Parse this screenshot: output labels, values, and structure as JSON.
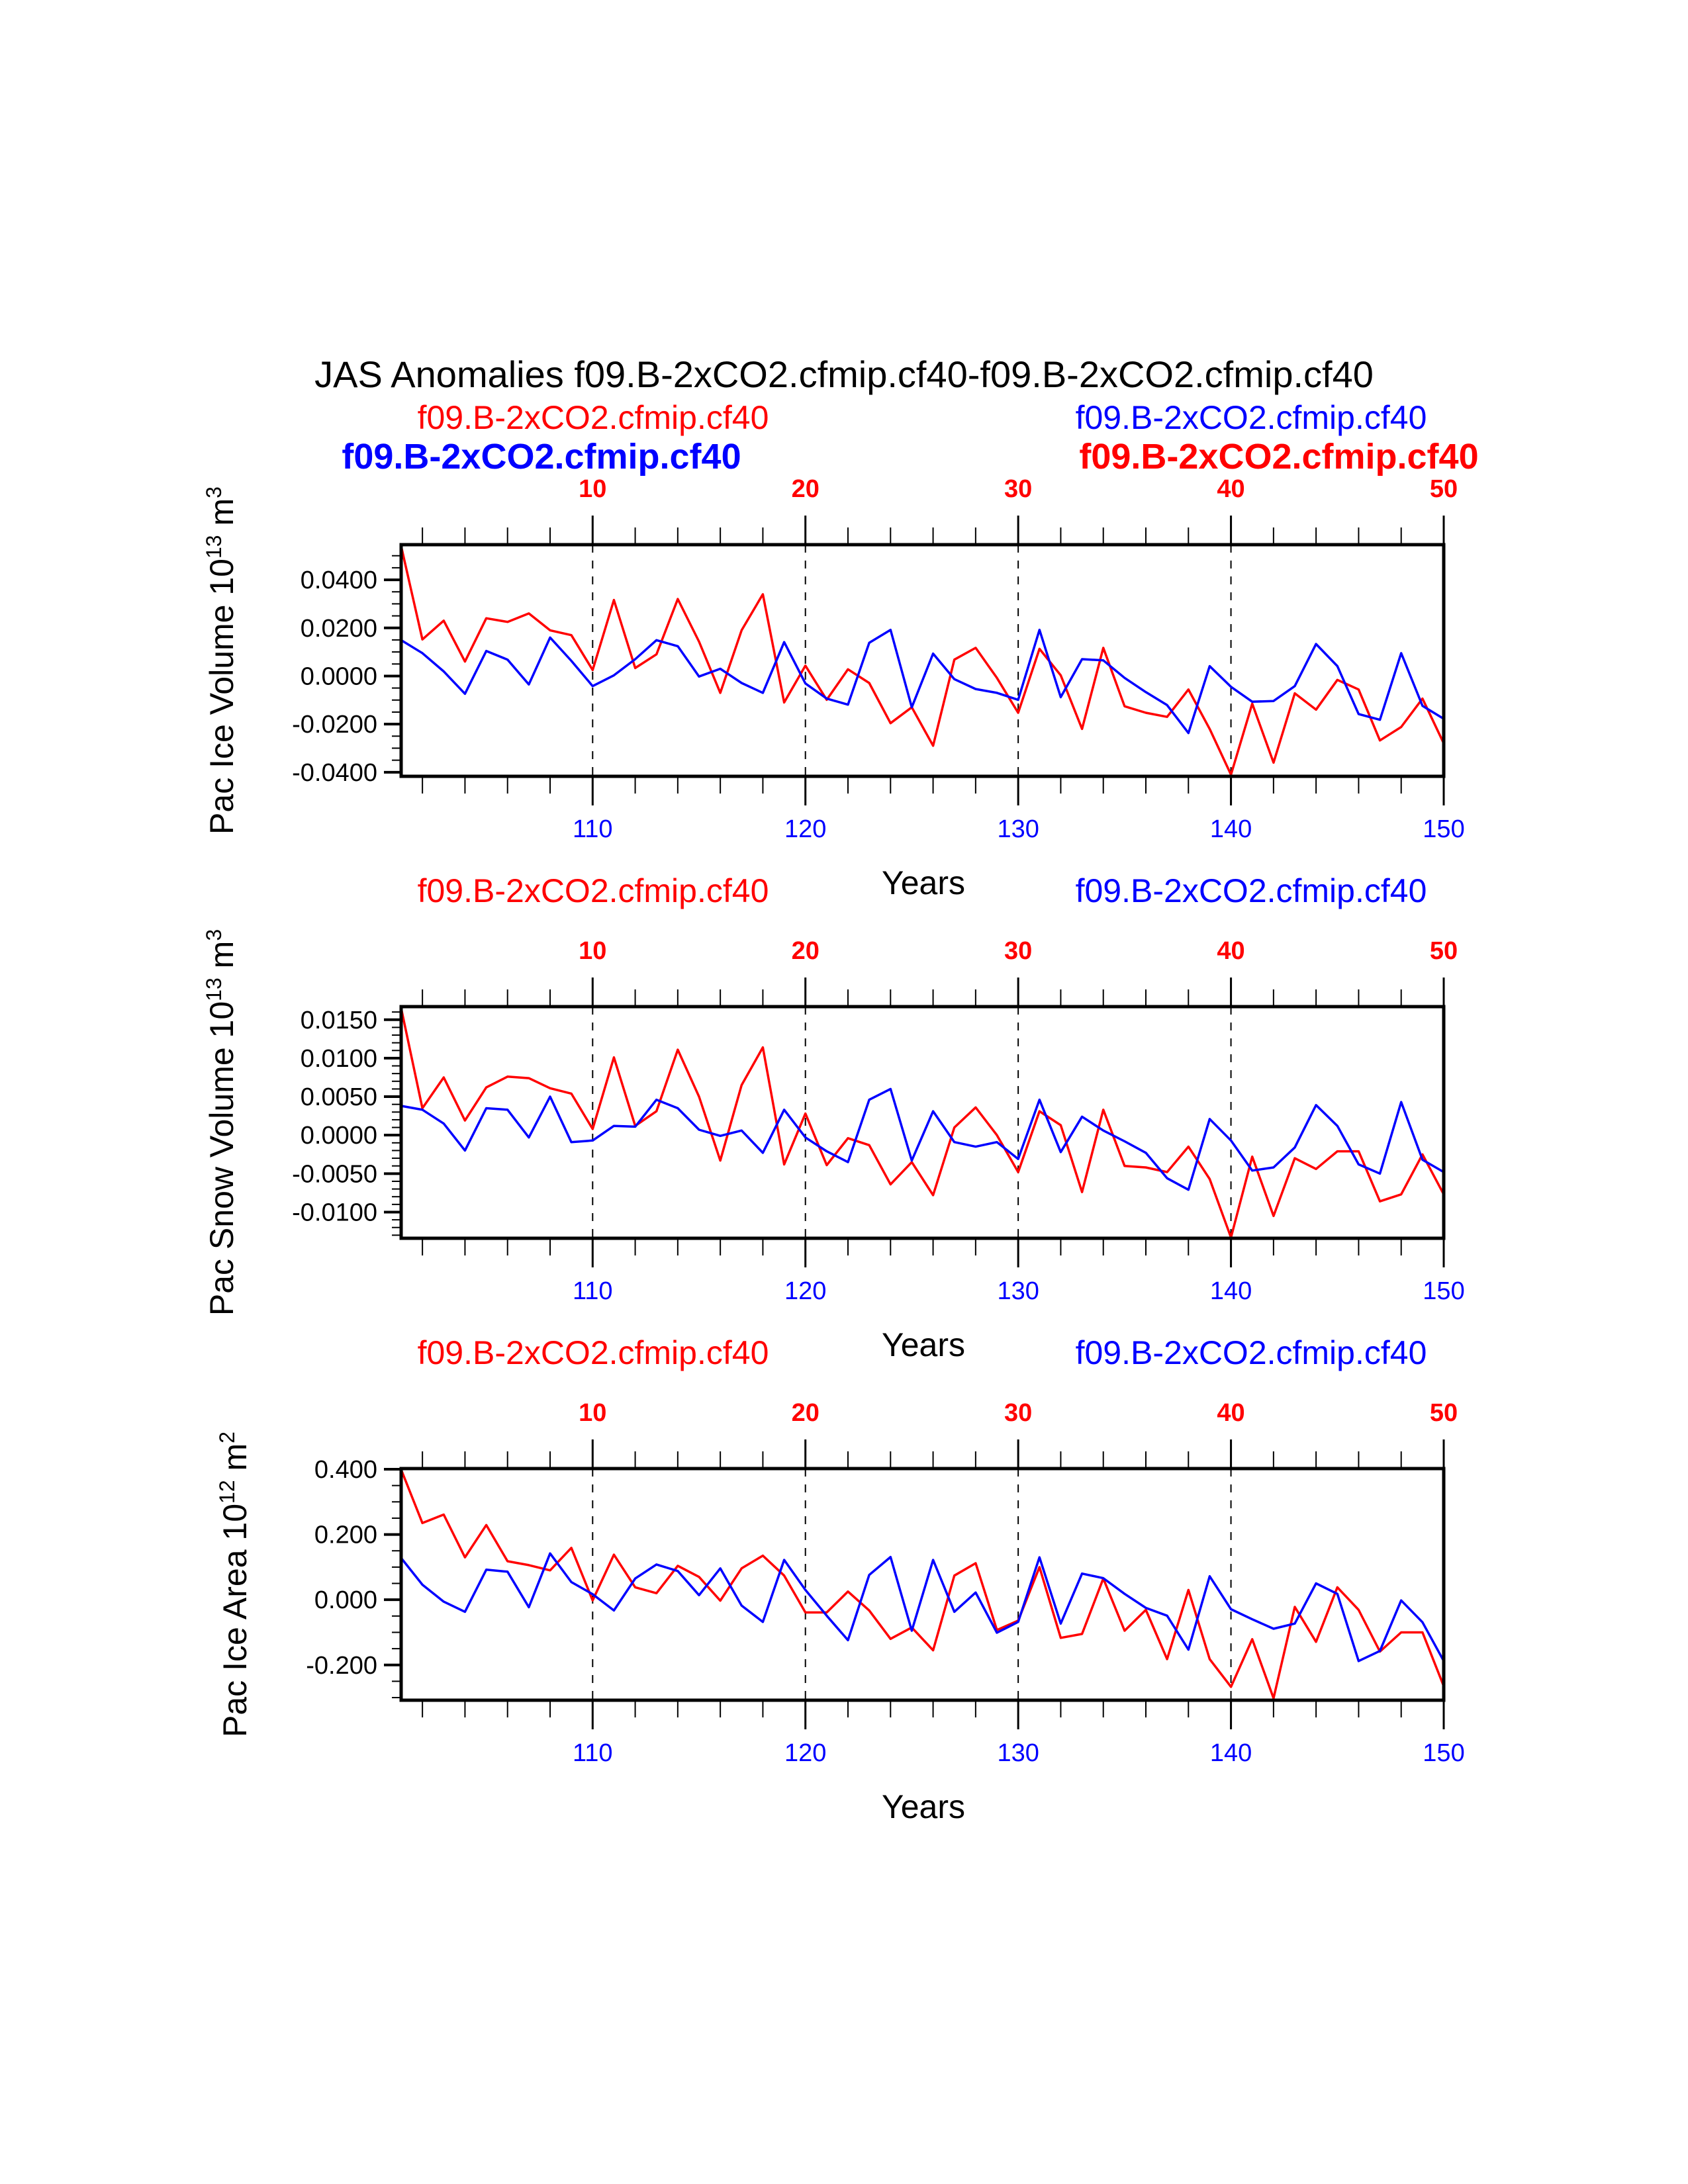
{
  "title": "JAS Anomalies f09.B-2xCO2.cfmip.cf40-f09.B-2xCO2.cfmip.cf40",
  "colors": {
    "case1": "#ff0000",
    "case2": "#0000ff",
    "axis": "#000000"
  },
  "chart_data": [
    {
      "type": "line",
      "ylabel": "Pac Ice Volume 10",
      "ylabel_exp": "13",
      "ylabel_unit": "m",
      "ylabel_unit_exp": "3",
      "xlabel": "Years",
      "legend_left": "f09.B-2xCO2.cfmip.cf40",
      "legend_right": "f09.B-2xCO2.cfmip.cf40",
      "legend_left_bold": "f09.B-2xCO2.cfmip.cf40",
      "legend_right_bold": "f09.B-2xCO2.cfmip.cf40",
      "xlim": [
        101,
        150
      ],
      "ylim": [
        -0.0417,
        0.0546
      ],
      "yticks": [
        "0.0400",
        "0.0200",
        "0.0000",
        "-0.0200",
        "-0.0400"
      ],
      "ytick_values": [
        0.04,
        0.02,
        0,
        -0.02,
        -0.04
      ],
      "yminor_step": 0.005,
      "xticks_bottom": [
        "110",
        "120",
        "130",
        "140",
        "150"
      ],
      "xticks_top": [
        "10",
        "20",
        "30",
        "40",
        "50"
      ],
      "series": [
        {
          "name": "f09.B-2xCO2.cfmip.cf40",
          "color": "#ff0000",
          "values": [
            0.054,
            0.0152,
            0.023,
            0.006,
            0.024,
            0.0225,
            0.026,
            0.019,
            0.017,
            0.0025,
            0.0316,
            0.0033,
            0.009,
            0.032,
            0.0143,
            -0.007,
            0.019,
            0.034,
            -0.011,
            0.0043,
            -0.0099,
            0.0028,
            -0.0029,
            -0.0196,
            -0.013,
            -0.029,
            0.0068,
            0.0117,
            -0.0008,
            -0.0153,
            0.0113,
            0.0003,
            -0.022,
            0.0117,
            -0.0126,
            -0.0153,
            -0.017,
            -0.0056,
            -0.022,
            -0.041,
            -0.0115,
            -0.036,
            -0.0072,
            -0.014,
            -0.0016,
            -0.0056,
            -0.0268,
            -0.0212,
            -0.0094,
            -0.028
          ]
        },
        {
          "name": "f09.B-2xCO2.cfmip.cf40",
          "color": "#0000ff",
          "values": [
            0.0149,
            0.0095,
            0.0019,
            -0.0074,
            0.0104,
            0.0068,
            -0.0035,
            0.016,
            0.0063,
            -0.0042,
            0.0003,
            0.007,
            0.0149,
            0.0124,
            -0.0002,
            0.003,
            -0.0029,
            -0.007,
            0.0141,
            -0.0031,
            -0.0094,
            -0.0119,
            0.0138,
            0.0192,
            -0.013,
            0.0093,
            -0.0013,
            -0.0054,
            -0.007,
            -0.0099,
            0.0192,
            -0.0088,
            0.007,
            0.0065,
            -0.0008,
            -0.0067,
            -0.0121,
            -0.0237,
            0.0041,
            -0.0045,
            -0.0107,
            -0.0104,
            -0.0042,
            0.0133,
            0.0041,
            -0.0158,
            -0.0182,
            0.0095,
            -0.0124,
            -0.0178
          ]
        }
      ]
    },
    {
      "type": "line",
      "ylabel": "Pac Snow Volume 10",
      "ylabel_exp": "13",
      "ylabel_unit": "m",
      "ylabel_unit_exp": "3",
      "xlabel": "Years",
      "legend_left": "f09.B-2xCO2.cfmip.cf40",
      "legend_right": "f09.B-2xCO2.cfmip.cf40",
      "xlim": [
        101,
        150
      ],
      "ylim": [
        -0.0134,
        0.0167
      ],
      "yticks": [
        "0.0150",
        "0.0100",
        "0.0050",
        "0.0000",
        "-0.0050",
        "-0.0100"
      ],
      "ytick_values": [
        0.015,
        0.01,
        0.005,
        0,
        -0.005,
        -0.01
      ],
      "yminor_step": 0.001,
      "xticks_bottom": [
        "110",
        "120",
        "130",
        "140",
        "150"
      ],
      "xticks_top": [
        "10",
        "20",
        "30",
        "40",
        "50"
      ],
      "series": [
        {
          "name": "f09.B-2xCO2.cfmip.cf40",
          "color": "#ff0000",
          "values": [
            0.0165,
            0.0035,
            0.0075,
            0.0019,
            0.0062,
            0.0076,
            0.0074,
            0.0061,
            0.0054,
            0.0008,
            0.0101,
            0.0012,
            0.0031,
            0.0111,
            0.005,
            -0.0033,
            0.0065,
            0.0114,
            -0.0038,
            0.0028,
            -0.0039,
            -0.0004,
            -0.0013,
            -0.0064,
            -0.0035,
            -0.0078,
            0.001,
            0.0036,
            0.0,
            -0.0048,
            0.0031,
            0.0013,
            -0.0074,
            0.0033,
            -0.004,
            -0.0042,
            -0.0048,
            -0.0015,
            -0.0057,
            -0.0133,
            -0.0028,
            -0.0105,
            -0.003,
            -0.0044,
            -0.0021,
            -0.0021,
            -0.0086,
            -0.0077,
            -0.0025,
            -0.0077
          ]
        },
        {
          "name": "f09.B-2xCO2.cfmip.cf40",
          "color": "#0000ff",
          "values": [
            0.0038,
            0.0033,
            0.0015,
            -0.002,
            0.0035,
            0.0033,
            -0.0003,
            0.005,
            -0.0009,
            -0.0007,
            0.0012,
            0.0011,
            0.0046,
            0.0035,
            0.0007,
            -0.0001,
            0.0006,
            -0.0023,
            0.0033,
            -0.0003,
            -0.0021,
            -0.0035,
            0.0046,
            0.006,
            -0.0033,
            0.0031,
            -0.0009,
            -0.0015,
            -0.0009,
            -0.0031,
            0.0046,
            -0.0022,
            0.0024,
            0.0006,
            -0.0008,
            -0.0023,
            -0.0056,
            -0.0071,
            0.0021,
            -0.0007,
            -0.0046,
            -0.0042,
            -0.0016,
            0.0039,
            0.0012,
            -0.0038,
            -0.005,
            0.0043,
            -0.0032,
            -0.0048
          ]
        }
      ]
    },
    {
      "type": "line",
      "ylabel": "Pac Ice Area 10",
      "ylabel_exp": "12",
      "ylabel_unit": "m",
      "ylabel_unit_exp": "2",
      "xlabel": "Years",
      "legend_left": "f09.B-2xCO2.cfmip.cf40",
      "legend_right": "f09.B-2xCO2.cfmip.cf40",
      "xlim": [
        101,
        150
      ],
      "ylim": [
        -0.308,
        0.402
      ],
      "yticks": [
        "0.400",
        "0.200",
        "0.000",
        "-0.200"
      ],
      "ytick_values": [
        0.4,
        0.2,
        0,
        -0.2
      ],
      "yminor_step": 0.05,
      "xticks_bottom": [
        "110",
        "120",
        "130",
        "140",
        "150"
      ],
      "xticks_top": [
        "10",
        "20",
        "30",
        "40",
        "50"
      ],
      "series": [
        {
          "name": "f09.B-2xCO2.cfmip.cf40",
          "color": "#ff0000",
          "values": [
            0.399,
            0.235,
            0.261,
            0.13,
            0.229,
            0.118,
            0.106,
            0.09,
            0.159,
            -0.002,
            0.138,
            0.038,
            0.02,
            0.104,
            0.07,
            -0.003,
            0.096,
            0.135,
            0.074,
            -0.039,
            -0.039,
            0.025,
            -0.033,
            -0.12,
            -0.085,
            -0.155,
            0.074,
            0.112,
            -0.093,
            -0.064,
            0.1,
            -0.117,
            -0.105,
            0.065,
            -0.095,
            -0.031,
            -0.182,
            0.03,
            -0.182,
            -0.267,
            -0.121,
            -0.302,
            -0.022,
            -0.129,
            0.038,
            -0.031,
            -0.159,
            -0.1,
            -0.1,
            -0.265
          ]
        },
        {
          "name": "f09.B-2xCO2.cfmip.cf40",
          "color": "#0000ff",
          "values": [
            0.128,
            0.046,
            -0.006,
            -0.037,
            0.092,
            0.086,
            -0.023,
            0.142,
            0.054,
            0.017,
            -0.033,
            0.065,
            0.108,
            0.088,
            0.014,
            0.096,
            -0.018,
            -0.068,
            0.122,
            0.03,
            -0.049,
            -0.124,
            0.076,
            0.131,
            -0.095,
            0.122,
            -0.037,
            0.022,
            -0.101,
            -0.068,
            0.13,
            -0.073,
            0.08,
            0.066,
            0.018,
            -0.025,
            -0.049,
            -0.153,
            0.072,
            -0.029,
            -0.06,
            -0.089,
            -0.073,
            0.05,
            0.018,
            -0.188,
            -0.157,
            -0.002,
            -0.069,
            -0.188
          ]
        }
      ]
    }
  ]
}
